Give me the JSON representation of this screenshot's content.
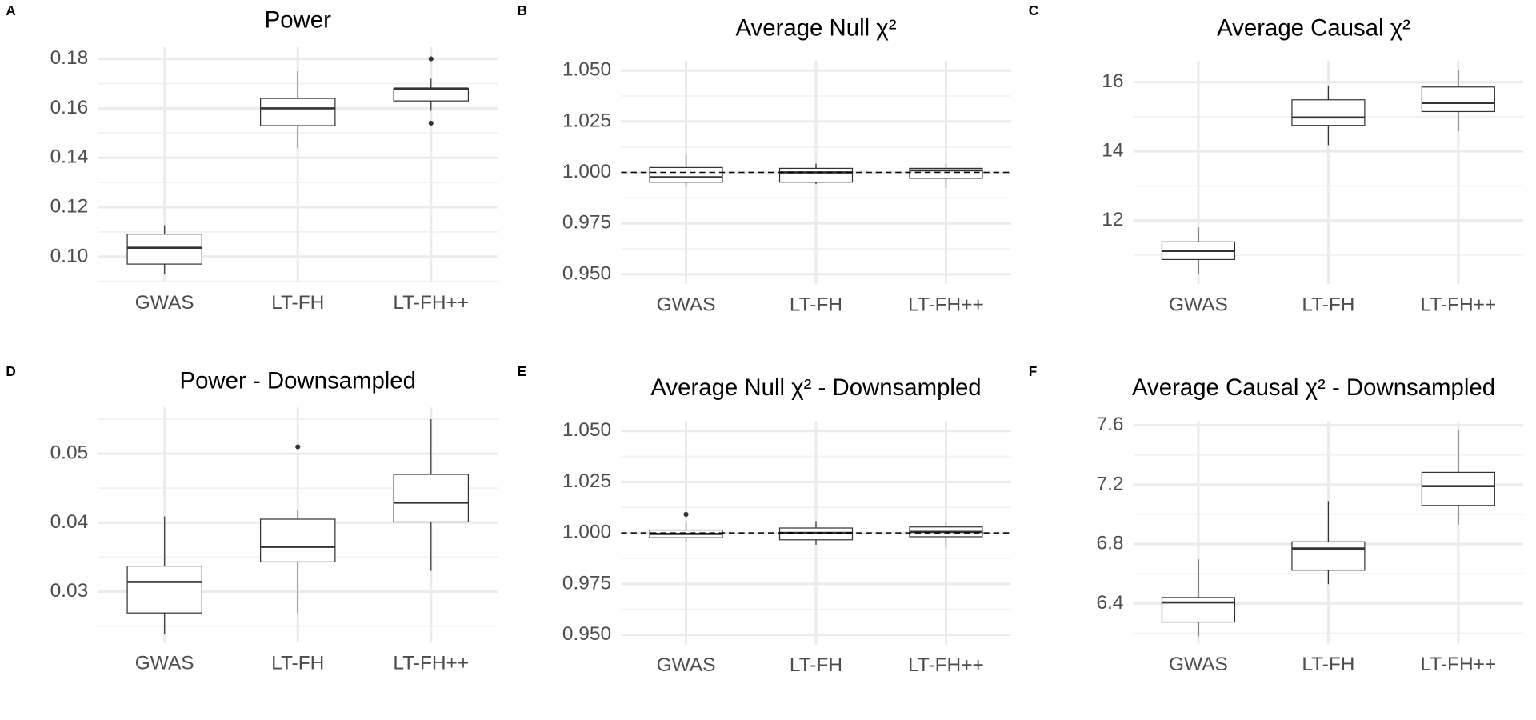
{
  "chart_data": [
    {
      "type": "box",
      "panel": "A",
      "title": "Power",
      "categories": [
        "GWAS",
        "LT-FH",
        "LT-FH++"
      ],
      "boxes": [
        {
          "whisker_low": 0.093,
          "q1": 0.097,
          "median": 0.1036,
          "q3": 0.1091,
          "whisker_high": 0.1127
        },
        {
          "whisker_low": 0.144,
          "q1": 0.153,
          "median": 0.16,
          "q3": 0.164,
          "whisker_high": 0.175
        },
        {
          "whisker_low": 0.159,
          "q1": 0.163,
          "median": 0.168,
          "q3": 0.168,
          "whisker_high": 0.172,
          "outliers": [
            0.18,
            0.154
          ]
        }
      ],
      "ylim": [
        0.0897,
        0.1848
      ],
      "yticks": [
        {
          "value": 0.1,
          "label": "0.10"
        },
        0.12,
        0.14,
        0.16,
        0.18
      ],
      "grid": true
    },
    {
      "type": "box",
      "panel": "B",
      "title": "Average Null  χ²",
      "categories": [
        "GWAS",
        "LT-FH",
        "LT-FH++"
      ],
      "boxes": [
        {
          "whisker_low": 0.9928,
          "q1": 0.9952,
          "median": 0.9976,
          "q3": 1.0024,
          "whisker_high": 1.0091
        },
        {
          "whisker_low": 0.9943,
          "q1": 0.9952,
          "median": 1.0,
          "q3": 1.002,
          "whisker_high": 1.0043
        },
        {
          "whisker_low": 0.9923,
          "q1": 0.9971,
          "median": 1.001,
          "q3": 1.002,
          "whisker_high": 1.0043
        }
      ],
      "reference_line": 1,
      "ylim": [
        0.9452,
        1.0548
      ],
      "yticks": [
        {
          "value": 0.95,
          "label": "0.950"
        },
        {
          "value": 0.975,
          "label": "0.975"
        },
        {
          "value": 1,
          "label": "1.000"
        },
        {
          "value": 1.025,
          "label": "1.025"
        },
        {
          "value": 1.05,
          "label": "1.050"
        }
      ],
      "grid": true
    },
    {
      "type": "box",
      "panel": "C",
      "title": "Average Causal  χ²",
      "categories": [
        "GWAS",
        "LT-FH",
        "LT-FH++"
      ],
      "boxes": [
        {
          "whisker_low": 10.44,
          "q1": 10.87,
          "median": 11.12,
          "q3": 11.38,
          "whisker_high": 11.8
        },
        {
          "whisker_low": 14.18,
          "q1": 14.75,
          "median": 14.98,
          "q3": 15.49,
          "whisker_high": 15.89
        },
        {
          "whisker_low": 14.58,
          "q1": 15.15,
          "median": 15.4,
          "q3": 15.86,
          "whisker_high": 16.34
        }
      ],
      "ylim": [
        10.16,
        16.62
      ],
      "yticks": [
        12,
        14,
        16
      ],
      "grid": true
    },
    {
      "type": "box",
      "panel": "D",
      "title": "Power - Downsampled",
      "categories": [
        "GWAS",
        "LT-FH",
        "LT-FH++"
      ],
      "boxes": [
        {
          "whisker_low": 0.0238,
          "q1": 0.0269,
          "median": 0.0314,
          "q3": 0.0337,
          "whisker_high": 0.0409
        },
        {
          "whisker_low": 0.0269,
          "q1": 0.0343,
          "median": 0.0365,
          "q3": 0.0405,
          "whisker_high": 0.0419,
          "outliers": [
            0.051
          ]
        },
        {
          "whisker_low": 0.033,
          "q1": 0.0401,
          "median": 0.0429,
          "q3": 0.047,
          "whisker_high": 0.055
        }
      ],
      "ylim": [
        0.0226,
        0.0567
      ],
      "yticks": [
        0.03,
        0.04,
        0.05
      ],
      "grid": true
    },
    {
      "type": "box",
      "panel": "E",
      "title": "Average Null  χ² - Downsampled",
      "categories": [
        "GWAS",
        "LT-FH",
        "LT-FH++"
      ],
      "boxes": [
        {
          "whisker_low": 0.9957,
          "q1": 0.9976,
          "median": 0.9995,
          "q3": 1.0014,
          "whisker_high": 1.0053,
          "outliers": [
            1.0091
          ]
        },
        {
          "whisker_low": 0.9942,
          "q1": 0.9966,
          "median": 1.0,
          "q3": 1.0024,
          "whisker_high": 1.0058
        },
        {
          "whisker_low": 0.9928,
          "q1": 0.9981,
          "median": 1.0005,
          "q3": 1.0029,
          "whisker_high": 1.0058
        }
      ],
      "reference_line": 1,
      "ylim": [
        0.9452,
        1.0548
      ],
      "yticks": [
        {
          "value": 0.95,
          "label": "0.950"
        },
        {
          "value": 0.975,
          "label": "0.975"
        },
        {
          "value": 1,
          "label": "1.000"
        },
        {
          "value": 1.025,
          "label": "1.025"
        },
        {
          "value": 1.05,
          "label": "1.050"
        }
      ],
      "grid": true
    },
    {
      "type": "box",
      "panel": "F",
      "title": "Average Causal  χ² - Downsampled",
      "categories": [
        "GWAS",
        "LT-FH",
        "LT-FH++"
      ],
      "boxes": [
        {
          "whisker_low": 6.18,
          "q1": 6.275,
          "median": 6.407,
          "q3": 6.44,
          "whisker_high": 6.697
        },
        {
          "whisker_low": 6.53,
          "q1": 6.624,
          "median": 6.77,
          "q3": 6.815,
          "whisker_high": 7.09
        },
        {
          "whisker_low": 6.93,
          "q1": 7.06,
          "median": 7.19,
          "q3": 7.283,
          "whisker_high": 7.57
        }
      ],
      "ylim": [
        6.13,
        7.627
      ],
      "yticks": [
        6.4,
        6.8,
        7.2,
        7.6
      ],
      "grid": true
    }
  ]
}
